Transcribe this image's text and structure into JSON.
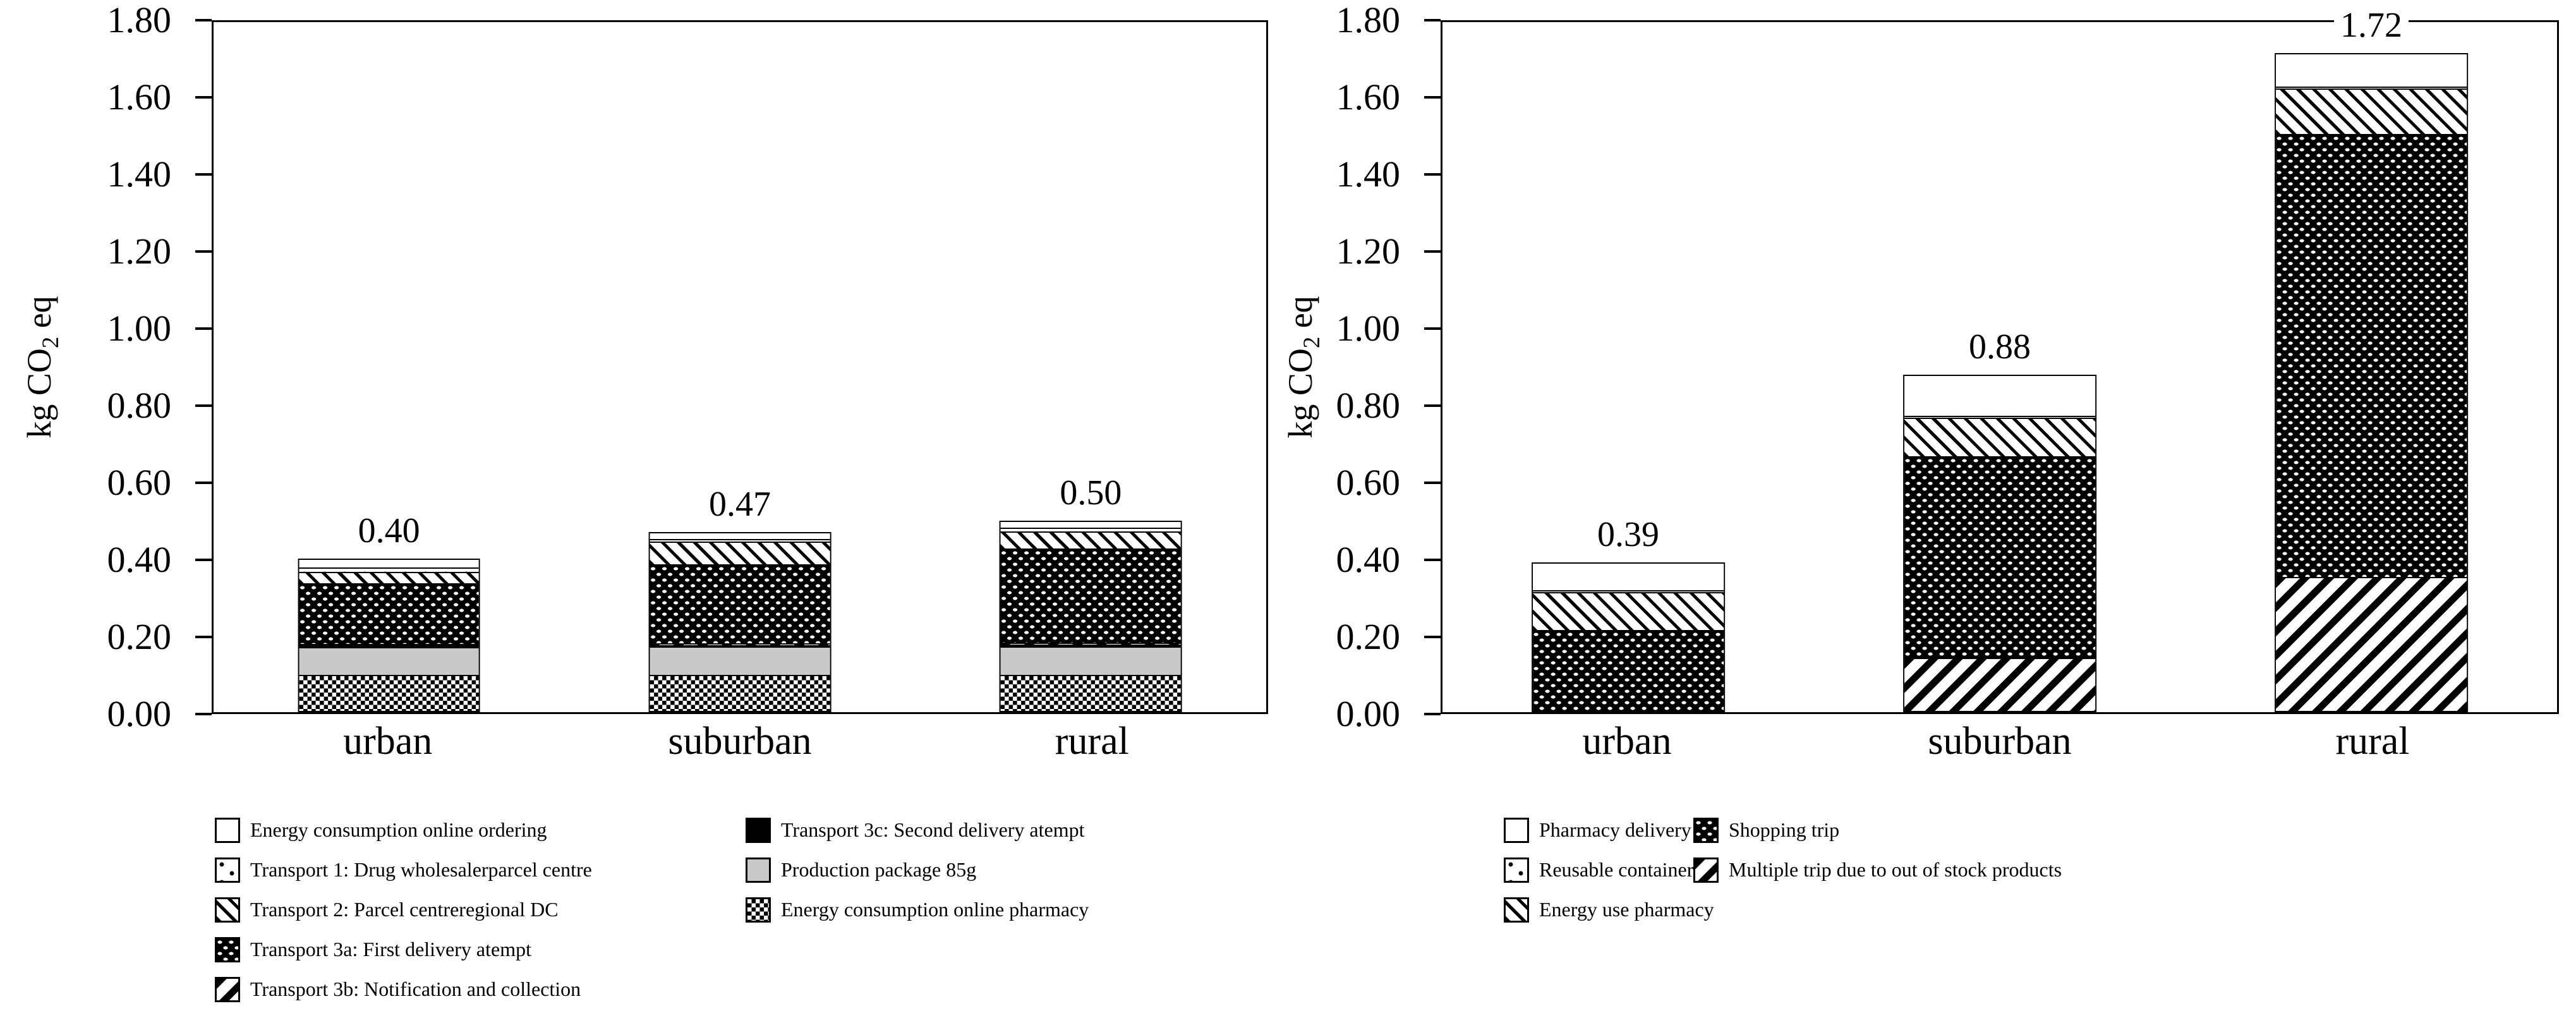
{
  "chart_data": [
    {
      "type": "bar",
      "stacked": true,
      "panel": "left",
      "title": "",
      "ylabel_pre": "kg CO",
      "ylabel_sub": "2",
      "ylabel_post": " eq",
      "ylim": [
        0,
        1.8
      ],
      "ytick_step": 0.2,
      "yticks": [
        "0.00",
        "0.20",
        "0.40",
        "0.60",
        "0.80",
        "1.00",
        "1.20",
        "1.40",
        "1.60",
        "1.80"
      ],
      "grid": false,
      "legend_position": "bottom",
      "categories": [
        "urban",
        "suburban",
        "rural"
      ],
      "totals": [
        "0.40",
        "0.47",
        "0.50"
      ],
      "series": [
        {
          "name": "Energy consumption online pharmacy",
          "pattern": "checker",
          "values": [
            0.095,
            0.095,
            0.095
          ]
        },
        {
          "name": "Production package 85g",
          "pattern": "solid-gray",
          "values": [
            0.075,
            0.075,
            0.075
          ]
        },
        {
          "name": "Transport 3c: Second delivery atempt",
          "pattern": "solid-black",
          "values": [
            0.004,
            0.004,
            0.005
          ]
        },
        {
          "name": "Transport 3b: Notification and collection",
          "pattern": "thick-diag",
          "values": [
            0.004,
            0.004,
            0.005
          ]
        },
        {
          "name": "Transport 3a: First delivery atempt",
          "pattern": "black-dots",
          "values": [
            0.16,
            0.21,
            0.25
          ]
        },
        {
          "name": "Transport 2: Parcel centreregional DC",
          "pattern": "diag-dots",
          "values": [
            0.03,
            0.06,
            0.045
          ]
        },
        {
          "name": "Transport 1: Drug wholesalerparcel centre",
          "pattern": "sparse-dots",
          "values": [
            0.012,
            0.007,
            0.01
          ]
        },
        {
          "name": "Energy consumption online ordering",
          "pattern": "white",
          "values": [
            0.02,
            0.015,
            0.015
          ]
        }
      ],
      "legend_columns": [
        [
          7,
          6,
          5,
          4,
          3
        ],
        [
          2,
          1,
          0
        ]
      ]
    },
    {
      "type": "bar",
      "stacked": true,
      "panel": "right",
      "title": "",
      "ylabel_pre": "kg CO",
      "ylabel_sub": "2",
      "ylabel_post": " eq",
      "ylim": [
        0,
        1.8
      ],
      "ytick_step": 0.2,
      "yticks": [
        "0.00",
        "0.20",
        "0.40",
        "0.60",
        "0.80",
        "1.00",
        "1.20",
        "1.40",
        "1.60",
        "1.80"
      ],
      "grid": false,
      "legend_position": "bottom",
      "categories": [
        "urban",
        "suburban",
        "rural"
      ],
      "totals": [
        "0.39",
        "0.88",
        "1.72"
      ],
      "series": [
        {
          "name": "Multiple trip due to out of stock products",
          "pattern": "thick-diag",
          "values": [
            0.0,
            0.14,
            0.35
          ]
        },
        {
          "name": "Shopping trip",
          "pattern": "black-dots",
          "values": [
            0.215,
            0.53,
            1.16
          ]
        },
        {
          "name": "Energy use pharmacy",
          "pattern": "diag-dots",
          "values": [
            0.1,
            0.1,
            0.12
          ]
        },
        {
          "name": "Reusable containers",
          "pattern": "sparse-dots",
          "values": [
            0.005,
            0.005,
            0.005
          ]
        },
        {
          "name": "Pharmacy delivery",
          "pattern": "white",
          "values": [
            0.07,
            0.105,
            0.085
          ]
        }
      ],
      "legend_columns": [
        [
          4,
          3,
          2
        ],
        [
          1,
          0
        ]
      ]
    }
  ],
  "colors": {
    "foreground": "#000000",
    "background": "#ffffff",
    "package_gray": "#c9c9c9"
  }
}
